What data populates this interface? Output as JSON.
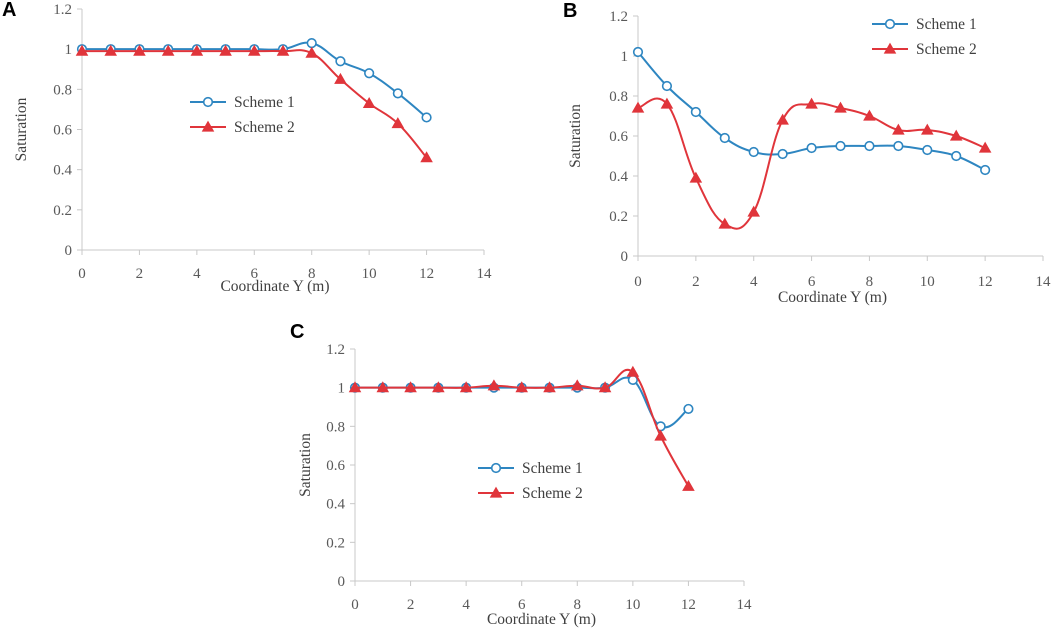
{
  "colors": {
    "scheme1": "#2e86c1",
    "scheme2": "#e0353b",
    "axis": "#c8c8c8",
    "text": "#404040"
  },
  "chart_data": [
    {
      "panel": "A",
      "type": "line",
      "xlabel": "Coordinate Y (m)",
      "ylabel": "Saturation",
      "xlim": [
        0,
        14
      ],
      "ylim": [
        0,
        1.2
      ],
      "xticks": [
        0,
        2,
        4,
        6,
        8,
        10,
        12,
        14
      ],
      "yticks": [
        0,
        0.2,
        0.4,
        0.6,
        0.8,
        1,
        1.2
      ],
      "xtick_labels": [
        "0",
        "2",
        "4",
        "6",
        "8",
        "10",
        "12",
        "14"
      ],
      "ytick_labels": [
        "0",
        "0.2",
        "0.4",
        "0.6",
        "0.8",
        "1",
        "1.2"
      ],
      "legend_position": "center-right",
      "series": [
        {
          "name": "Scheme 1",
          "marker": "circle",
          "x": [
            0,
            1,
            2,
            3,
            4,
            5,
            6,
            7,
            8,
            9,
            10,
            11,
            12
          ],
          "y": [
            1,
            1,
            1,
            1,
            1,
            1,
            1,
            1,
            1.03,
            0.94,
            0.88,
            0.78,
            0.66
          ]
        },
        {
          "name": "Scheme 2",
          "marker": "triangle",
          "x": [
            0,
            1,
            2,
            3,
            4,
            5,
            6,
            7,
            8,
            9,
            10,
            11,
            12
          ],
          "y": [
            0.99,
            0.99,
            0.99,
            0.99,
            0.99,
            0.99,
            0.99,
            0.99,
            0.98,
            0.85,
            0.73,
            0.63,
            0.46
          ]
        }
      ]
    },
    {
      "panel": "B",
      "type": "line",
      "xlabel": "Coordinate Y (m)",
      "ylabel": "Saturation",
      "xlim": [
        0,
        14
      ],
      "ylim": [
        0,
        1.2
      ],
      "xticks": [
        0,
        2,
        4,
        6,
        8,
        10,
        12,
        14
      ],
      "yticks": [
        0,
        0.2,
        0.4,
        0.6,
        0.8,
        1,
        1.2
      ],
      "xtick_labels": [
        "0",
        "2",
        "4",
        "6",
        "8",
        "10",
        "12",
        "14"
      ],
      "ytick_labels": [
        "0",
        "0.2",
        "0.4",
        "0.6",
        "0.8",
        "1",
        "1.2"
      ],
      "legend_position": "top-right",
      "series": [
        {
          "name": "Scheme 1",
          "marker": "circle",
          "x": [
            0,
            1,
            2,
            3,
            4,
            5,
            6,
            7,
            8,
            9,
            10,
            11,
            12
          ],
          "y": [
            1.02,
            0.85,
            0.72,
            0.59,
            0.52,
            0.51,
            0.54,
            0.55,
            0.55,
            0.55,
            0.53,
            0.5,
            0.43
          ]
        },
        {
          "name": "Scheme 2",
          "marker": "triangle",
          "x": [
            0,
            1,
            2,
            3,
            4,
            5,
            6,
            7,
            8,
            9,
            10,
            11,
            12
          ],
          "y": [
            0.74,
            0.76,
            0.39,
            0.16,
            0.22,
            0.68,
            0.76,
            0.74,
            0.7,
            0.63,
            0.63,
            0.6,
            0.54
          ]
        }
      ]
    },
    {
      "panel": "C",
      "type": "line",
      "xlabel": "Coordinate Y (m)",
      "ylabel": "Saturation",
      "xlim": [
        0,
        14
      ],
      "ylim": [
        0,
        1.2
      ],
      "xticks": [
        0,
        2,
        4,
        6,
        8,
        10,
        12,
        14
      ],
      "yticks": [
        0,
        0.2,
        0.4,
        0.6,
        0.8,
        1,
        1.2
      ],
      "xtick_labels": [
        "0",
        "2",
        "4",
        "6",
        "8",
        "10",
        "12",
        "14"
      ],
      "ytick_labels": [
        "0",
        "0.2",
        "0.4",
        "0.6",
        "0.8",
        "1",
        "1.2"
      ],
      "legend_position": "center",
      "series": [
        {
          "name": "Scheme 1",
          "marker": "circle",
          "x": [
            0,
            1,
            2,
            3,
            4,
            5,
            6,
            7,
            8,
            9,
            10,
            11,
            12
          ],
          "y": [
            1,
            1,
            1,
            1,
            1,
            1,
            1,
            1,
            1,
            1,
            1.04,
            0.8,
            0.89
          ]
        },
        {
          "name": "Scheme 2",
          "marker": "triangle",
          "x": [
            0,
            1,
            2,
            3,
            4,
            5,
            6,
            7,
            8,
            9,
            10,
            11,
            12
          ],
          "y": [
            1,
            1,
            1,
            1,
            1,
            1.01,
            1,
            1,
            1.01,
            1,
            1.08,
            0.75,
            0.49
          ]
        }
      ]
    }
  ]
}
